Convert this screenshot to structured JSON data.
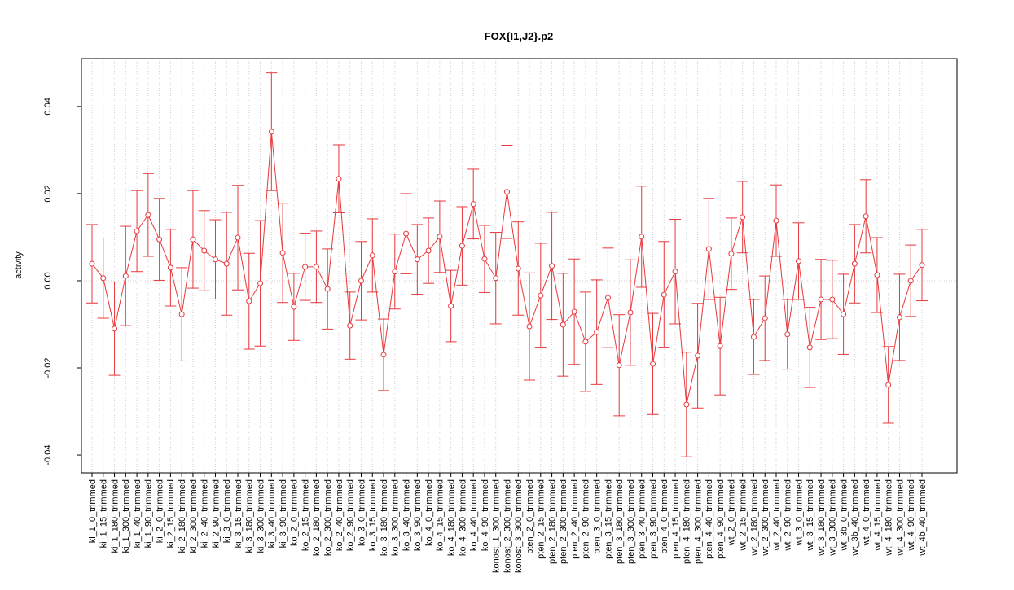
{
  "chart_data": {
    "type": "errorbar_line",
    "title": "FOX{I1,J2}.p2",
    "ylabel": "activity",
    "categories": [
      "ki_1_0_trimmed",
      "ki_1_15_trimmed",
      "ki_1_180_trimmed",
      "ki_1_300_trimmed",
      "ki_1_40_trimmed",
      "ki_1_90_trimmed",
      "ki_2_0_trimmed",
      "ki_2_15_trimmed",
      "ki_2_180_trimmed",
      "ki_2_300_trimmed",
      "ki_2_40_trimmed",
      "ki_2_90_trimmed",
      "ki_3_0_trimmed",
      "ki_3_15_trimmed",
      "ki_3_180_trimmed",
      "ki_3_300_trimmed",
      "ki_3_40_trimmed",
      "ki_3_90_trimmed",
      "ko_2_0_trimmed",
      "ko_2_15_trimmed",
      "ko_2_180_trimmed",
      "ko_2_300_trimmed",
      "ko_2_40_trimmed",
      "ko_2_90_trimmed",
      "ko_3_0_trimmed",
      "ko_3_15_trimmed",
      "ko_3_180_trimmed",
      "ko_3_300_trimmed",
      "ko_3_40_trimmed",
      "ko_3_90_trimmed",
      "ko_4_0_trimmed",
      "ko_4_15_trimmed",
      "ko_4_180_trimmed",
      "ko_4_300_trimmed",
      "ko_4_40_trimmed",
      "ko_4_90_trimmed",
      "konost_1_300_trimmed",
      "konost_2_300_trimmed",
      "konost_3_300_trimmed",
      "pten_2_0_trimmed",
      "pten_2_15_trimmed",
      "pten_2_180_trimmed",
      "pten_2_300_trimmed",
      "pten_2_40_trimmed",
      "pten_2_90_trimmed",
      "pten_3_0_trimmed",
      "pten_3_15_trimmed",
      "pten_3_180_trimmed",
      "pten_3_300_trimmed",
      "pten_3_40_trimmed",
      "pten_3_90_trimmed",
      "pten_4_0_trimmed",
      "pten_4_15_trimmed",
      "pten_4_180_trimmed",
      "pten_4_300_trimmed",
      "pten_4_40_trimmed",
      "pten_4_90_trimmed",
      "wt_2_0_trimmed",
      "wt_2_15_trimmed",
      "wt_2_180_trimmed",
      "wt_2_300_trimmed",
      "wt_2_40_trimmed",
      "wt_2_90_trimmed",
      "wt_3_0_trimmed",
      "wt_3_15_trimmed",
      "wt_3_180_trimmed",
      "wt_3_300_trimmed",
      "wt_3b_0_trimmed",
      "wt_3b_40_trimmed",
      "wt_4_0_trimmed",
      "wt_4_15_trimmed",
      "wt_4_180_trimmed",
      "wt_4_300_trimmed",
      "wt_4_90_trimmed",
      "wt_4b_40_trimmed"
    ],
    "values": [
      0.0039,
      0.0006,
      -0.011,
      0.0011,
      0.0114,
      0.0151,
      0.0095,
      0.003,
      -0.0077,
      0.0095,
      0.0069,
      0.0049,
      0.0039,
      0.0099,
      -0.0047,
      -0.0006,
      0.0342,
      0.0064,
      -0.006,
      0.0032,
      0.0032,
      -0.0019,
      0.0234,
      -0.0103,
      0.0,
      0.0058,
      -0.017,
      0.0021,
      0.0108,
      0.0049,
      0.0069,
      0.0101,
      -0.0058,
      0.008,
      0.0176,
      0.005,
      0.0006,
      0.0204,
      0.0028,
      -0.0105,
      -0.0034,
      0.0034,
      -0.0101,
      -0.0071,
      -0.014,
      -0.0118,
      -0.0039,
      -0.0194,
      -0.0073,
      0.0101,
      -0.0191,
      -0.0032,
      0.0021,
      -0.0284,
      -0.0172,
      0.0073,
      -0.015,
      0.0062,
      0.0146,
      -0.0129,
      -0.0086,
      0.0138,
      -0.0123,
      0.0045,
      -0.0153,
      -0.0043,
      -0.0043,
      -0.0077,
      0.0039,
      0.0148,
      0.0013,
      -0.0239,
      -0.0084,
      0.0,
      0.0036
    ],
    "errors": [
      0.009,
      0.0092,
      0.0107,
      0.0114,
      0.0093,
      0.0095,
      0.0094,
      0.0088,
      0.0107,
      0.0112,
      0.0092,
      0.0091,
      0.0118,
      0.012,
      0.011,
      0.0144,
      0.0135,
      0.0114,
      0.0077,
      0.0077,
      0.0082,
      0.0092,
      0.0078,
      0.0077,
      0.009,
      0.0084,
      0.0082,
      0.0086,
      0.0092,
      0.008,
      0.0075,
      0.0082,
      0.0082,
      0.009,
      0.008,
      0.0077,
      0.0105,
      0.0107,
      0.0107,
      0.0123,
      0.012,
      0.0123,
      0.0118,
      0.0121,
      0.0114,
      0.012,
      0.0114,
      0.0116,
      0.0121,
      0.0116,
      0.0116,
      0.0122,
      0.012,
      0.012,
      0.012,
      0.0116,
      0.0112,
      0.0082,
      0.0082,
      0.0086,
      0.0097,
      0.0082,
      0.008,
      0.0088,
      0.0092,
      0.0092,
      0.009,
      0.0092,
      0.009,
      0.0084,
      0.0086,
      0.0088,
      0.0099,
      0.0082,
      0.0082
    ],
    "color": "#e8383c",
    "ylim": [
      -0.0441,
      0.051
    ],
    "yticks": [
      -0.04,
      -0.02,
      {
        "value": 0,
        "label": "0.00"
      },
      0.02,
      0.04
    ],
    "grid": true
  }
}
